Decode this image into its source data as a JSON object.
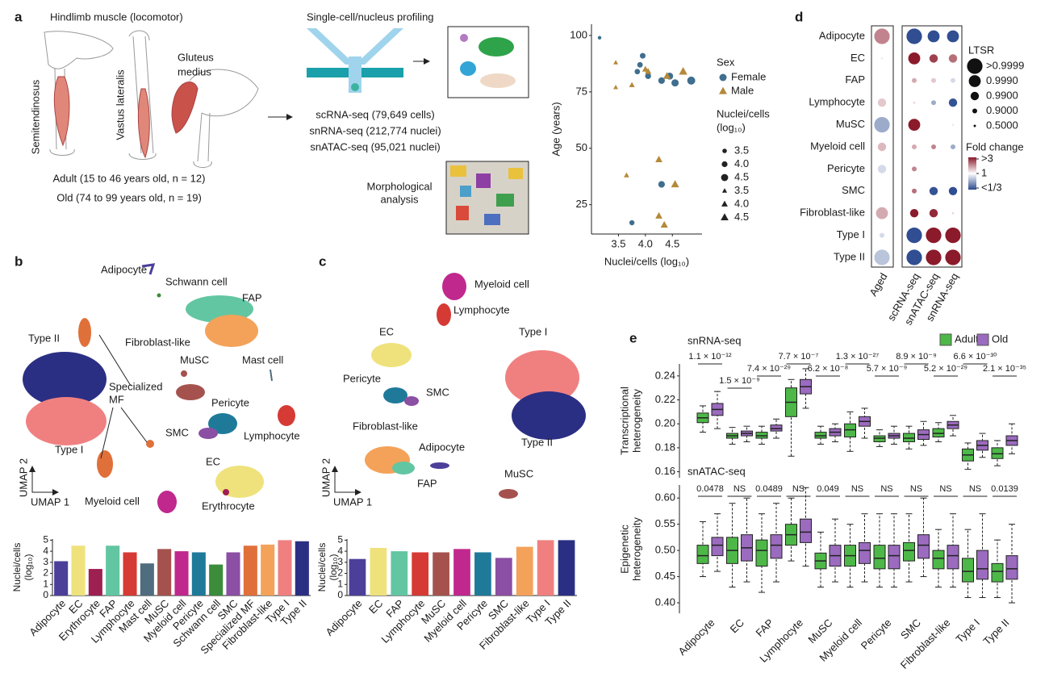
{
  "panel_labels": [
    "a",
    "b",
    "c",
    "d",
    "e"
  ],
  "panel_a": {
    "title": "Hindlimb muscle (locomotor)",
    "muscles": [
      "Semitendinosus",
      "Vastus lateralis",
      [
        "Gluteus",
        "medius"
      ]
    ],
    "cohorts": [
      "Adult (15 to 46 years old, n = 12)",
      "Old (74 to 99 years old, n = 19)"
    ],
    "profiling_title": "Single-cell/nucleus profiling",
    "assays": [
      "scRNA-seq (79,649 cells)",
      "snRNA-seq (212,774 nuclei)",
      "snATAC-seq (95,021 nuclei)"
    ],
    "morphology": [
      "Morphological",
      "analysis"
    ]
  },
  "umap_b": {
    "labels": [
      "Adipocyte",
      "Schwann cell",
      "FAP",
      "Type II",
      "Fibroblast-like",
      [
        "Specialized",
        "MF"
      ],
      "MuSC",
      "Mast cell",
      "Pericyte",
      "SMC",
      "Lymphocyte",
      "Type I",
      "EC",
      "Myeloid cell",
      "Erythrocyte"
    ],
    "axes": [
      "UMAP 2",
      "UMAP 1"
    ]
  },
  "umap_c": {
    "labels": [
      "Myeloid cell",
      "Lymphocyte",
      "EC",
      "Type I",
      "Pericyte",
      "SMC",
      "Fibroblast-like",
      "Adipocyte",
      "FAP",
      "Type II",
      "MuSC"
    ],
    "axes": [
      "UMAP 2",
      "UMAP 1"
    ]
  },
  "chart_data": [
    {
      "type": "bar",
      "ylabel": [
        "Nuclei/cells",
        "(log₁₀)"
      ],
      "categories": [
        "Adipocyte",
        "EC",
        "Erythrocyte",
        "FAP",
        "Lymphocyte",
        "Mast cell",
        "MuSC",
        "Myeloid cell",
        "Pericyte",
        "Schwann cell",
        "SMC",
        "Specialized MF",
        "Fibroblast-like",
        "Type I",
        "Type II"
      ],
      "values": [
        3.1,
        4.5,
        2.4,
        4.5,
        3.9,
        2.9,
        4.2,
        4.0,
        3.9,
        2.8,
        3.9,
        4.5,
        4.6,
        5.0,
        4.9
      ],
      "colors": [
        "#4b3f9a",
        "#efe27c",
        "#9e1f52",
        "#62c6a2",
        "#d63a34",
        "#4f6d7e",
        "#a5524e",
        "#c0288e",
        "#1f7a9a",
        "#3b8c3b",
        "#8b4fa3",
        "#e0703a",
        "#f4a259",
        "#f08080",
        "#2b2f83"
      ],
      "ylim": [
        0,
        5.1
      ],
      "yticks": [
        0,
        1,
        2,
        3,
        4,
        5
      ]
    },
    {
      "type": "bar",
      "ylabel": [
        "Nuclei/cells",
        "(log₁₀)"
      ],
      "categories": [
        "Adipocyte",
        "EC",
        "FAP",
        "Lymphocyte",
        "MuSC",
        "Myeloid cell",
        "Pericyte",
        "SMC",
        "Fibroblast-like",
        "Type I",
        "Type II"
      ],
      "values": [
        3.3,
        4.3,
        4.0,
        3.9,
        3.9,
        4.2,
        3.9,
        3.4,
        4.4,
        5.0,
        5.0
      ],
      "colors": [
        "#4b3f9a",
        "#efe27c",
        "#62c6a2",
        "#d63a34",
        "#a5524e",
        "#c0288e",
        "#1f7a9a",
        "#8b4fa3",
        "#f4a259",
        "#f08080",
        "#2b2f83"
      ],
      "ylim": [
        0,
        5.1
      ],
      "yticks": [
        0,
        1,
        2,
        3,
        4,
        5
      ]
    },
    {
      "type": "scatter",
      "xlabel": "Nuclei/cells (log₁₀)",
      "ylabel": "Age (years)",
      "xlim": [
        3.0,
        5.05
      ],
      "ylim": [
        12,
        105
      ],
      "xticks": [
        3.5,
        {
          "value": 4,
          "label": "4.0"
        },
        4.5
      ],
      "yticks": [
        25,
        50,
        75,
        100
      ],
      "legend_title": "Sex",
      "series": [
        {
          "name": "Female",
          "color": "#3f6e8e",
          "marker": "circle",
          "x": [
            3.15,
            3.9,
            3.95,
            3.85,
            4.05,
            4.3,
            4.45,
            4.55,
            4.85,
            4.3,
            3.75
          ],
          "values": [
            99,
            87,
            91,
            84,
            82,
            80,
            82,
            79,
            80,
            34,
            17
          ]
        },
        {
          "name": "Male",
          "color": "#b5893a",
          "marker": "triangle",
          "x": [
            3.45,
            3.45,
            3.75,
            4.0,
            4.05,
            4.4,
            4.7,
            3.65,
            4.25,
            4.55,
            4.25,
            4.35
          ],
          "values": [
            88,
            77,
            78,
            85,
            84,
            82,
            84,
            38,
            45,
            34,
            20,
            16
          ]
        }
      ],
      "size_legend": {
        "title": [
          "Nuclei/cells",
          "(log₁₀)"
        ],
        "values": [
          3.5,
          {
            "value": 4,
            "label": "4.0"
          },
          4.5
        ]
      }
    },
    {
      "type": "dot",
      "rows": [
        "Adipocyte",
        "EC",
        "FAP",
        "Lymphocyte",
        "MuSC",
        "Myeloid cell",
        "Pericyte",
        "SMC",
        "Fibroblast-like",
        "Type I",
        "Type II"
      ],
      "columns": [
        "Aged",
        "scRNA-seq",
        "snATAC-seq",
        "snRNA-seq"
      ],
      "ltsr": [
        [
          0.9999,
          0.9999,
          0.999,
          0.999
        ],
        [
          0.5,
          0.999,
          0.99,
          0.99
        ],
        [
          0.5,
          0.9,
          0.9,
          0.9
        ],
        [
          0.99,
          0.5,
          0.9,
          0.99
        ],
        [
          0.9999,
          0.999,
          0.5,
          0.5
        ],
        [
          0.99,
          0.9,
          0.9,
          0.9
        ],
        [
          0.99,
          0.9,
          0.5,
          0.5
        ],
        [
          0.5,
          0.9,
          0.99,
          0.99
        ],
        [
          0.999,
          0.99,
          0.99,
          0.5
        ],
        [
          0.9,
          0.9999,
          0.9999,
          0.9999
        ],
        [
          0.9999,
          0.9999,
          0.9999,
          0.9999
        ]
      ],
      "fold_change": [
        [
          1.8,
          0.34,
          0.34,
          0.34
        ],
        [
          1.1,
          3,
          2.5,
          2
        ],
        [
          1,
          1.5,
          1.3,
          0.8
        ],
        [
          1.3,
          1.2,
          0.6,
          0.35
        ],
        [
          0.6,
          3,
          1,
          0.9
        ],
        [
          1.4,
          1.5,
          1.8,
          0.6
        ],
        [
          0.8,
          1.8,
          1,
          1
        ],
        [
          1,
          2,
          0.35,
          0.34
        ],
        [
          1.5,
          3,
          2.8,
          1.2
        ],
        [
          0.8,
          0.34,
          3,
          3
        ],
        [
          0.7,
          0.34,
          3,
          3
        ]
      ],
      "size_legend": {
        "title": "LTSR",
        "values": [
          {
            "value": 0.9999,
            "label": ">0.9999"
          },
          {
            "value": 0.999,
            "label": "0.9990"
          },
          {
            "value": 0.99,
            "label": "0.9900"
          },
          {
            "value": 0.9,
            "label": "0.9000"
          },
          {
            "value": 0.5,
            "label": "0.5000"
          }
        ]
      },
      "color_legend": {
        "title": "Fold change",
        "ticks": [
          {
            "value": 3,
            "label": ">3"
          },
          1,
          {
            "value": 0.3333,
            "label": "<1/3"
          }
        ]
      }
    },
    {
      "type": "box",
      "title": "snRNA-seq",
      "ylabel": [
        "Transcriptional",
        "heterogeneity"
      ],
      "ylim": [
        0.155,
        0.25
      ],
      "yticks": [
        0.16,
        0.18,
        {
          "value": 0.2,
          "label": "0.20"
        },
        0.22,
        0.24
      ],
      "annotations": [
        "1.1 × 10⁻¹²",
        "1.5 × 10⁻⁹",
        "7.4 × 10⁻²⁹",
        "7.7 × 10⁻⁷",
        "6.2 × 10⁻⁸",
        "1.3 × 10⁻²⁷",
        "5.7 × 10⁻⁹",
        "8.9 × 10⁻⁹",
        "5.2 × 10⁻²⁹",
        "6.6 × 10⁻³⁰",
        "2.1 × 10⁻³⁵"
      ],
      "series": [
        {
          "name": "Adult",
          "color": "#4db848",
          "boxes": [
            [
              0.193,
              0.201,
              0.205,
              0.209,
              0.215
            ],
            [
              0.183,
              0.188,
              0.19,
              0.192,
              0.197
            ],
            [
              0.183,
              0.188,
              0.19,
              0.193,
              0.198
            ],
            [
              0.173,
              0.206,
              0.218,
              0.23,
              0.237
            ],
            [
              0.183,
              0.188,
              0.19,
              0.193,
              0.198
            ],
            [
              0.177,
              0.189,
              0.195,
              0.2,
              0.21
            ],
            [
              0.181,
              0.185,
              0.188,
              0.19,
              0.195
            ],
            [
              0.179,
              0.185,
              0.188,
              0.192,
              0.198
            ],
            [
              0.185,
              0.189,
              0.192,
              0.196,
              0.201
            ],
            [
              0.162,
              0.169,
              0.174,
              0.179,
              0.184
            ],
            [
              0.165,
              0.171,
              0.175,
              0.18,
              0.186
            ]
          ]
        },
        {
          "name": "Old",
          "color": "#9b6bbf",
          "boxes": [
            [
              0.196,
              0.207,
              0.212,
              0.217,
              0.227
            ],
            [
              0.185,
              0.19,
              0.192,
              0.194,
              0.198
            ],
            [
              0.188,
              0.194,
              0.196,
              0.199,
              0.204
            ],
            [
              0.213,
              0.225,
              0.231,
              0.237,
              0.246
            ],
            [
              0.185,
              0.19,
              0.193,
              0.196,
              0.2
            ],
            [
              0.188,
              0.198,
              0.202,
              0.206,
              0.213
            ],
            [
              0.183,
              0.188,
              0.19,
              0.192,
              0.198
            ],
            [
              0.182,
              0.187,
              0.191,
              0.195,
              0.202
            ],
            [
              0.19,
              0.196,
              0.199,
              0.202,
              0.207
            ],
            [
              0.172,
              0.178,
              0.182,
              0.186,
              0.192
            ],
            [
              0.175,
              0.182,
              0.186,
              0.19,
              0.2
            ]
          ]
        }
      ]
    },
    {
      "type": "box",
      "title": "snATAC-seq",
      "ylabel": [
        "Epigenetic",
        "heterogeneity"
      ],
      "ylim": [
        0.38,
        0.625
      ],
      "yticks": [
        {
          "value": 0.4,
          "label": "0.40"
        },
        0.45,
        {
          "value": 0.5,
          "label": "0.50"
        },
        0.55,
        {
          "value": 0.6,
          "label": "0.60"
        }
      ],
      "categories": [
        "Adipocyte",
        "EC",
        "FAP",
        "Lymphocyte",
        "MuSC",
        "Myeloid cell",
        "Pericyte",
        "SMC",
        "Fibroblast-like",
        "Type I",
        "Type II"
      ],
      "annotations": [
        "0.0478",
        "NS",
        "0.0489",
        "NS",
        "0.049",
        "NS",
        "NS",
        "NS",
        "NS",
        "NS",
        "0.0139"
      ],
      "series": [
        {
          "color": "#4db848",
          "boxes": [
            [
              0.45,
              0.475,
              0.49,
              0.51,
              0.555
            ],
            [
              0.43,
              0.475,
              0.5,
              0.525,
              0.59
            ],
            [
              0.42,
              0.47,
              0.5,
              0.52,
              0.57
            ],
            [
              0.48,
              0.51,
              0.53,
              0.55,
              0.6
            ],
            [
              0.43,
              0.465,
              0.48,
              0.495,
              0.535
            ],
            [
              0.43,
              0.47,
              0.49,
              0.51,
              0.55
            ],
            [
              0.43,
              0.465,
              0.485,
              0.51,
              0.57
            ],
            [
              0.44,
              0.48,
              0.5,
              0.515,
              0.57
            ],
            [
              0.43,
              0.465,
              0.485,
              0.5,
              0.54
            ],
            [
              0.41,
              0.44,
              0.46,
              0.485,
              0.54
            ],
            [
              0.41,
              0.44,
              0.46,
              0.475,
              0.52
            ]
          ]
        },
        {
          "color": "#9b6bbf",
          "boxes": [
            [
              0.46,
              0.49,
              0.51,
              0.525,
              0.57
            ],
            [
              0.44,
              0.48,
              0.505,
              0.53,
              0.6
            ],
            [
              0.44,
              0.485,
              0.51,
              0.53,
              0.59
            ],
            [
              0.47,
              0.515,
              0.535,
              0.56,
              0.62
            ],
            [
              0.44,
              0.47,
              0.49,
              0.51,
              0.56
            ],
            [
              0.44,
              0.475,
              0.5,
              0.515,
              0.57
            ],
            [
              0.43,
              0.465,
              0.49,
              0.51,
              0.57
            ],
            [
              0.45,
              0.485,
              0.51,
              0.53,
              0.6
            ],
            [
              0.43,
              0.465,
              0.49,
              0.51,
              0.57
            ],
            [
              0.41,
              0.445,
              0.465,
              0.5,
              0.57
            ],
            [
              0.4,
              0.445,
              0.465,
              0.49,
              0.55
            ]
          ]
        }
      ]
    }
  ]
}
